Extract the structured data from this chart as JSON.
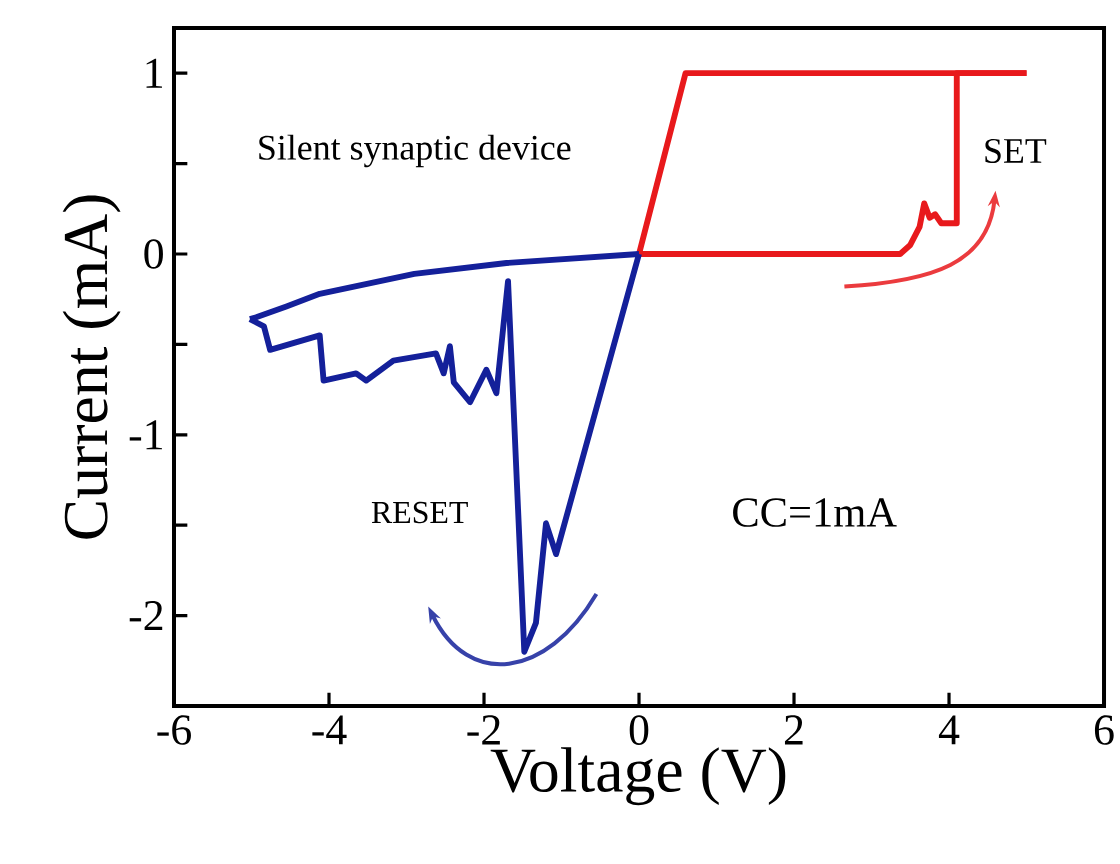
{
  "chart_data": {
    "type": "line",
    "xlabel": "Voltage (V)",
    "ylabel": "Current (mA)",
    "xlim": [
      -6,
      6
    ],
    "ylim": [
      -2.5,
      1.25
    ],
    "xticks": [
      -6,
      -4,
      -2,
      0,
      2,
      4,
      6
    ],
    "yticks": [
      -2,
      {
        "value": -1.5,
        "label": null
      },
      -1,
      {
        "value": -0.5,
        "label": null
      },
      0,
      {
        "value": 0.5,
        "label": null
      },
      1
    ],
    "grid": false,
    "marker": "none",
    "line_style": "solid",
    "annotations": [
      "Silent synaptic device",
      "SET",
      "RESET",
      "CC=1mA"
    ],
    "series": [
      {
        "color": "#e8191c",
        "x": [
          0,
          3.37,
          3.5,
          3.62,
          3.68,
          3.75,
          3.82,
          3.9,
          4.1,
          4.1,
          5.0
        ],
        "values": [
          0,
          0,
          0.05,
          0.15,
          0.28,
          0.2,
          0.22,
          0.17,
          0.17,
          1,
          1
        ]
      },
      {
        "color": "#e8191c",
        "x": [
          5.0,
          0.6,
          0
        ],
        "values": [
          1,
          1,
          0
        ]
      },
      {
        "color": "#14209a",
        "x": [
          0,
          -1.07,
          -1.2,
          -1.33,
          -1.48,
          -1.69,
          -1.84,
          -1.97,
          -2.18,
          -2.39,
          -2.44,
          -2.52,
          -2.62,
          -3.17,
          -3.52,
          -3.65,
          -4.07,
          -4.12,
          -4.76,
          -4.84,
          -5.02
        ],
        "values": [
          0,
          -1.66,
          -1.49,
          -2.04,
          -2.2,
          -0.15,
          -0.77,
          -0.64,
          -0.82,
          -0.71,
          -0.51,
          -0.66,
          -0.55,
          -0.59,
          -0.7,
          -0.66,
          -0.7,
          -0.45,
          -0.53,
          -0.4,
          -0.36
        ]
      },
      {
        "color": "#14209a",
        "x": [
          -5.02,
          -4.94,
          -4.55,
          -4.12,
          -2.9,
          -1.71,
          0
        ],
        "values": [
          -0.36,
          -0.35,
          -0.29,
          -0.22,
          -0.11,
          -0.05,
          0
        ]
      }
    ]
  }
}
